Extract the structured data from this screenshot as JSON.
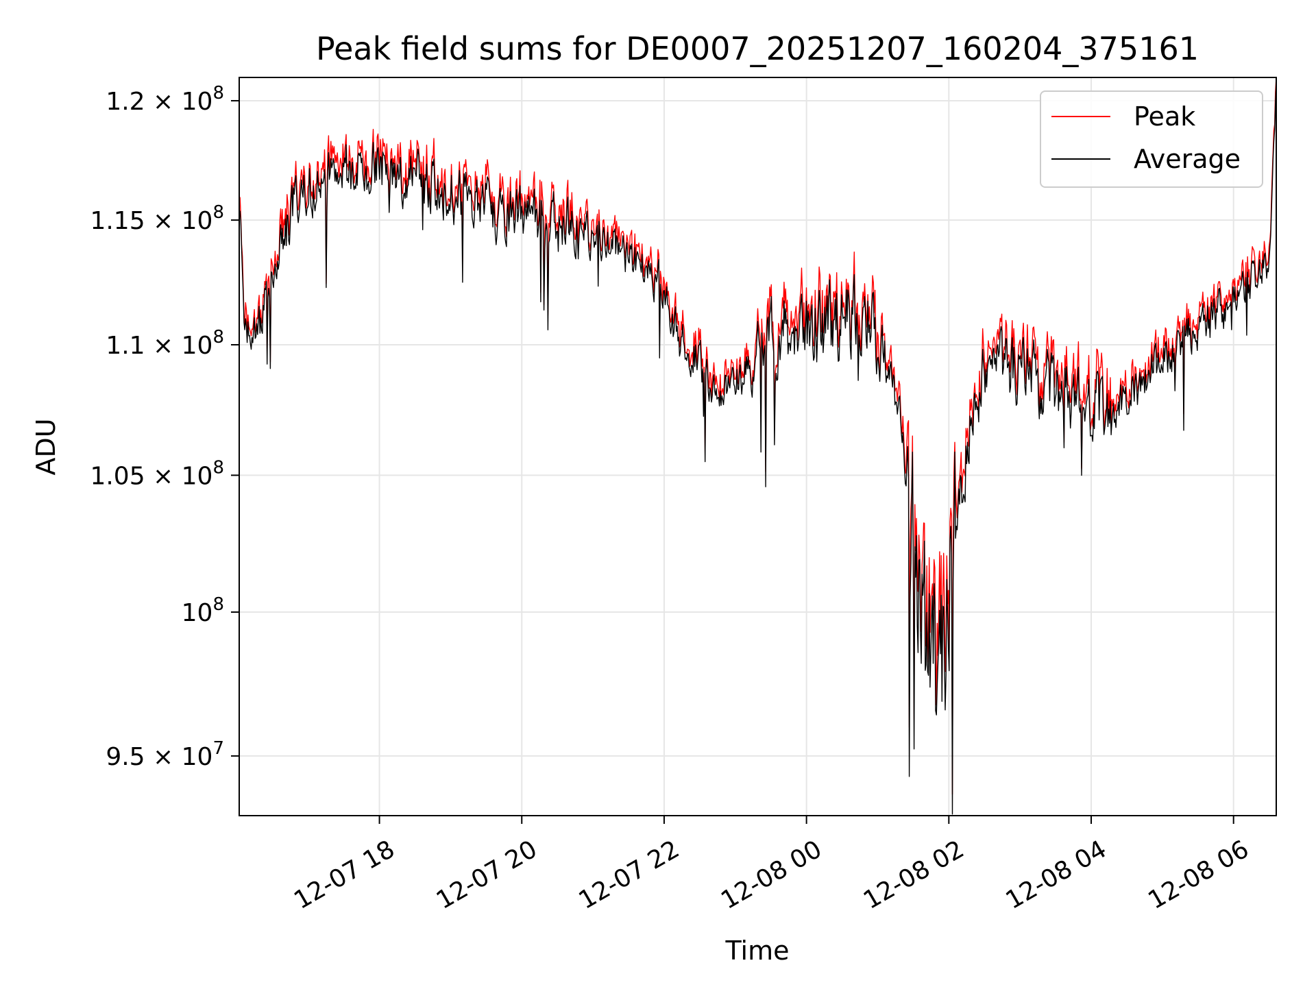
{
  "chart_data": {
    "type": "line",
    "title": "Peak field sums for DE0007_20251207_160204_375161",
    "xlabel": "Time",
    "ylabel": "ADU",
    "yscale": "log",
    "grid": true,
    "legend_position": "top-right",
    "xlim_hours": [
      16.03,
      30.6
    ],
    "ylim": [
      93000000,
      121000000
    ],
    "x_ticks": [
      {
        "value": 18,
        "label": "12-07 18"
      },
      {
        "value": 20,
        "label": "12-07 20"
      },
      {
        "value": 22,
        "label": "12-07 22"
      },
      {
        "value": 24,
        "label": "12-08 00"
      },
      {
        "value": 26,
        "label": "12-08 02"
      },
      {
        "value": 28,
        "label": "12-08 04"
      },
      {
        "value": 30,
        "label": "12-08 06"
      }
    ],
    "y_ticks": [
      {
        "value": 95000000,
        "base": "9.5 × 10",
        "exp": "7"
      },
      {
        "value": 100000000,
        "base": "10",
        "exp": "8"
      },
      {
        "value": 105000000,
        "base": "1.05 × 10",
        "exp": "8"
      },
      {
        "value": 110000000,
        "base": "1.1 × 10",
        "exp": "8"
      },
      {
        "value": 115000000,
        "base": "1.15 × 10",
        "exp": "8"
      },
      {
        "value": 120000000,
        "base": "1.2 × 10",
        "exp": "8"
      }
    ],
    "series": [
      {
        "name": "Peak",
        "color": "#ff0000"
      },
      {
        "name": "Average",
        "color": "#000000"
      }
    ],
    "trend": {
      "x_hours": [
        16.03,
        16.1,
        16.2,
        16.35,
        16.5,
        16.8,
        17.0,
        17.5,
        18.0,
        18.3,
        18.6,
        19.0,
        19.5,
        20.0,
        20.5,
        21.0,
        21.5,
        22.0,
        22.2,
        22.5,
        22.8,
        23.0,
        23.3,
        23.6,
        23.9,
        24.3,
        24.6,
        24.9,
        25.1,
        25.3,
        25.5,
        25.7,
        25.9,
        26.1,
        26.4,
        26.7,
        27.0,
        27.3,
        27.6,
        27.9,
        28.2,
        28.5,
        28.8,
        29.2,
        29.6,
        30.0,
        30.3,
        30.5,
        30.6
      ],
      "values": [
        116000000,
        111000000,
        110000000,
        111000000,
        113000000,
        115500000,
        116500000,
        117000000,
        117200000,
        117000000,
        116500000,
        116000000,
        115500000,
        115200000,
        114700000,
        114300000,
        113500000,
        112200000,
        110200000,
        109300000,
        108200000,
        108500000,
        109000000,
        110500000,
        111000000,
        110800000,
        111200000,
        110800000,
        109500000,
        107500000,
        102500000,
        99000000,
        98500000,
        103500000,
        108500000,
        109300000,
        109000000,
        108500000,
        107800000,
        107500000,
        107400000,
        107800000,
        108800000,
        110000000,
        110800000,
        111800000,
        112800000,
        113500000,
        121000000
      ]
    }
  }
}
